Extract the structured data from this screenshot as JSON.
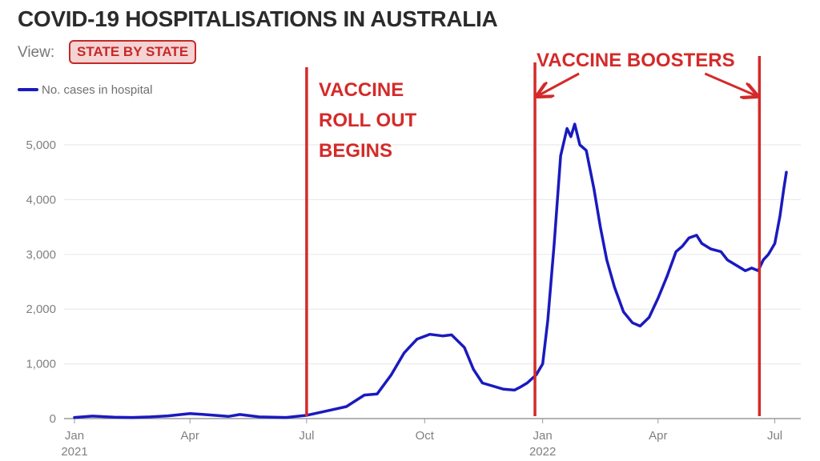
{
  "header": {
    "title": "COVID-19 HOSPITALISATIONS IN AUSTRALIA",
    "view_label": "View:",
    "view_button": "STATE BY STATE"
  },
  "colors": {
    "series": "#1a1abf",
    "annotation": "#d42a2a",
    "grid": "#e6e6e6",
    "axis": "#9a9a9a"
  },
  "chart_data": {
    "type": "line",
    "title": "COVID-19 HOSPITALISATIONS IN AUSTRALIA",
    "legend": {
      "position": "top-left",
      "entries": [
        "No. cases in hospital"
      ]
    },
    "grid": {
      "horizontal": true,
      "vertical": false
    },
    "x_ticks": [
      {
        "date": "2021-01-01",
        "label": "Jan",
        "year": "2021"
      },
      {
        "date": "2021-04-01",
        "label": "Apr"
      },
      {
        "date": "2021-07-01",
        "label": "Jul"
      },
      {
        "date": "2021-10-01",
        "label": "Oct"
      },
      {
        "date": "2022-01-01",
        "label": "Jan",
        "year": "2022"
      },
      {
        "date": "2022-04-01",
        "label": "Apr"
      },
      {
        "date": "2022-07-01",
        "label": "Jul"
      }
    ],
    "y_ticks": [
      {
        "value": 0,
        "label": "0"
      },
      {
        "value": 1000,
        "label": "1,000"
      },
      {
        "value": 2000,
        "label": "2,000"
      },
      {
        "value": 3000,
        "label": "3,000"
      },
      {
        "value": 4000,
        "label": "4,000"
      },
      {
        "value": 5000,
        "label": "5,000"
      }
    ],
    "xlim": [
      "2021-01-01",
      "2022-07-15"
    ],
    "ylim": [
      0,
      5600
    ],
    "series": [
      {
        "name": "No. cases in hospital",
        "points": [
          [
            "2021-01-01",
            20
          ],
          [
            "2021-01-15",
            45
          ],
          [
            "2021-02-01",
            25
          ],
          [
            "2021-02-15",
            20
          ],
          [
            "2021-03-01",
            30
          ],
          [
            "2021-03-15",
            50
          ],
          [
            "2021-04-01",
            90
          ],
          [
            "2021-04-15",
            70
          ],
          [
            "2021-05-01",
            40
          ],
          [
            "2021-05-10",
            75
          ],
          [
            "2021-05-25",
            30
          ],
          [
            "2021-06-15",
            20
          ],
          [
            "2021-07-01",
            60
          ],
          [
            "2021-07-15",
            130
          ],
          [
            "2021-08-01",
            220
          ],
          [
            "2021-08-15",
            430
          ],
          [
            "2021-08-25",
            450
          ],
          [
            "2021-09-05",
            800
          ],
          [
            "2021-09-15",
            1200
          ],
          [
            "2021-09-25",
            1450
          ],
          [
            "2021-10-05",
            1540
          ],
          [
            "2021-10-15",
            1510
          ],
          [
            "2021-10-22",
            1530
          ],
          [
            "2021-11-01",
            1300
          ],
          [
            "2021-11-08",
            900
          ],
          [
            "2021-11-15",
            650
          ],
          [
            "2021-12-01",
            540
          ],
          [
            "2021-12-10",
            520
          ],
          [
            "2021-12-15",
            580
          ],
          [
            "2021-12-20",
            650
          ],
          [
            "2021-12-27",
            800
          ],
          [
            "2022-01-01",
            1000
          ],
          [
            "2022-01-05",
            1800
          ],
          [
            "2022-01-10",
            3200
          ],
          [
            "2022-01-15",
            4800
          ],
          [
            "2022-01-20",
            5300
          ],
          [
            "2022-01-23",
            5150
          ],
          [
            "2022-01-26",
            5380
          ],
          [
            "2022-01-30",
            5000
          ],
          [
            "2022-02-04",
            4900
          ],
          [
            "2022-02-10",
            4200
          ],
          [
            "2022-02-15",
            3500
          ],
          [
            "2022-02-20",
            2900
          ],
          [
            "2022-02-26",
            2400
          ],
          [
            "2022-03-05",
            1950
          ],
          [
            "2022-03-12",
            1750
          ],
          [
            "2022-03-18",
            1690
          ],
          [
            "2022-03-25",
            1850
          ],
          [
            "2022-04-01",
            2200
          ],
          [
            "2022-04-08",
            2600
          ],
          [
            "2022-04-15",
            3050
          ],
          [
            "2022-04-20",
            3150
          ],
          [
            "2022-04-25",
            3300
          ],
          [
            "2022-05-01",
            3350
          ],
          [
            "2022-05-05",
            3200
          ],
          [
            "2022-05-12",
            3100
          ],
          [
            "2022-05-20",
            3050
          ],
          [
            "2022-05-25",
            2900
          ],
          [
            "2022-06-01",
            2800
          ],
          [
            "2022-06-08",
            2700
          ],
          [
            "2022-06-13",
            2750
          ],
          [
            "2022-06-18",
            2700
          ],
          [
            "2022-06-22",
            2900
          ],
          [
            "2022-06-26",
            3000
          ],
          [
            "2022-07-01",
            3200
          ],
          [
            "2022-07-05",
            3700
          ],
          [
            "2022-07-08",
            4200
          ],
          [
            "2022-07-10",
            4500
          ]
        ]
      }
    ],
    "annotations": {
      "vertical_lines": [
        {
          "date": "2021-07-01",
          "name": "rollout"
        },
        {
          "date": "2021-12-26",
          "name": "booster-start"
        },
        {
          "date": "2022-06-19",
          "name": "booster-end"
        }
      ],
      "rollout_text": [
        "VACCINE",
        "ROLL OUT",
        "BEGINS"
      ],
      "booster_text": "VACCINE BOOSTERS"
    }
  }
}
